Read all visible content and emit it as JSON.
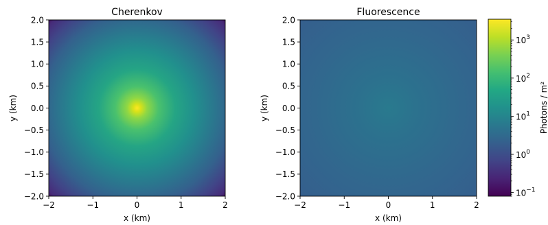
{
  "chart_data": [
    {
      "type": "heatmap",
      "title": "Cherenkov",
      "xlabel": "x (km)",
      "ylabel": "y (km)",
      "xlim": [
        -2,
        2
      ],
      "ylim": [
        -2,
        2
      ],
      "xticks": [
        "−2",
        "−1",
        "0",
        "1",
        "2"
      ],
      "yticks": [
        "2.0",
        "1.5",
        "1.0",
        "0.5",
        "0.0",
        "−0.5",
        "−1.0",
        "−1.5",
        "−2.0"
      ],
      "grid": false,
      "peak_photons_per_m2": 3000,
      "edge_photons_per_m2": 0.1,
      "center_km": [
        0,
        0
      ]
    },
    {
      "type": "heatmap",
      "title": "Fluorescence",
      "xlabel": "x (km)",
      "ylabel": "y (km)",
      "xlim": [
        -2,
        2
      ],
      "ylim": [
        -2,
        2
      ],
      "xticks": [
        "−2",
        "−1",
        "0",
        "1",
        "2"
      ],
      "yticks": [
        "2.0",
        "1.5",
        "1.0",
        "0.5",
        "0.0",
        "−0.5",
        "−1.0",
        "−1.5",
        "−2.0"
      ],
      "grid": false,
      "peak_photons_per_m2": 5,
      "edge_photons_per_m2": 1.5,
      "center_km": [
        0,
        0
      ]
    }
  ],
  "colorbar": {
    "label": "Photons / m²",
    "scale": "log",
    "range": [
      0.08,
      3500
    ],
    "ticks": [
      {
        "value": 0.1,
        "base": "10",
        "exp": "−1"
      },
      {
        "value": 1,
        "base": "10",
        "exp": "0"
      },
      {
        "value": 10,
        "base": "10",
        "exp": "1"
      },
      {
        "value": 100,
        "base": "10",
        "exp": "2"
      },
      {
        "value": 1000,
        "base": "10",
        "exp": "3"
      }
    ],
    "colormap": "viridis"
  }
}
